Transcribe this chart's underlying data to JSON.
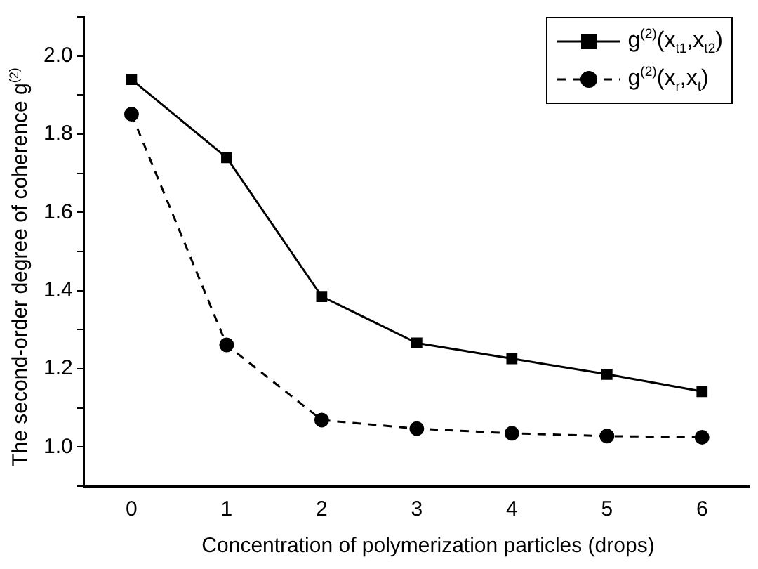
{
  "chart_data": {
    "type": "line",
    "xlabel": "Concentration of polymerization particles (drops)",
    "ylabel": "The second-order degree of coherence g$^{(2)}$",
    "x": [
      0,
      1,
      2,
      3,
      4,
      5,
      6
    ],
    "series": [
      {
        "name": "g$^{(2)}$(x$_{t1}$,x$_{t2}$)",
        "color": "#000000",
        "marker": "square",
        "line_style": "solid",
        "values": [
          1.94,
          1.74,
          1.385,
          1.266,
          1.226,
          1.186,
          1.142
        ]
      },
      {
        "name": "g$^{(2)}$(x$_{r}$,x$_{t}$)",
        "color": "#000000",
        "marker": "circle",
        "line_style": "dashed",
        "values": [
          1.851,
          1.261,
          1.069,
          1.047,
          1.035,
          1.028,
          1.025
        ]
      }
    ],
    "xlim": [
      -0.5,
      6.5
    ],
    "xticks": [
      0,
      1,
      2,
      3,
      4,
      5,
      6
    ],
    "ylim": [
      0.9,
      2.1
    ],
    "yticks": [
      {
        "value": 1,
        "label": "1.0"
      },
      1.2,
      1.4,
      1.6,
      1.8,
      {
        "value": 2,
        "label": "2.0"
      }
    ],
    "grid": false,
    "legend": "top right"
  }
}
